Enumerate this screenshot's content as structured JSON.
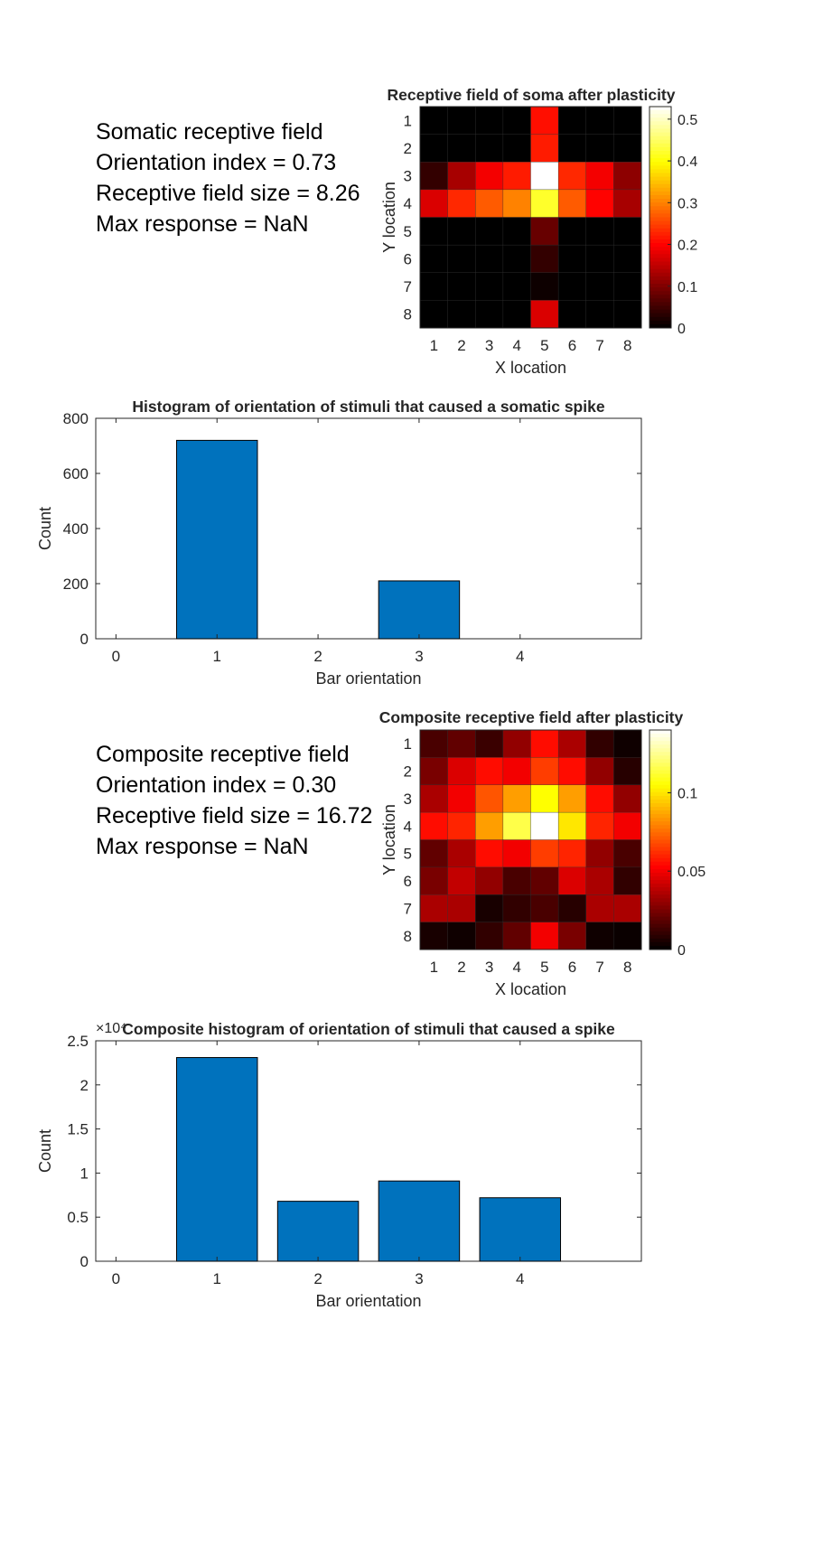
{
  "panels": {
    "soma_info": {
      "title": "Somatic receptive field",
      "orientation_index": "Orientation index = 0.73",
      "rf_size": "Receptive field size = 8.26",
      "max_response": "Max response = NaN"
    },
    "composite_info": {
      "title": "Composite receptive field",
      "orientation_index": "Orientation index = 0.30",
      "rf_size": "Receptive field size = 16.72",
      "max_response": "Max response = NaN"
    }
  },
  "chart_data": [
    {
      "type": "heatmap",
      "title": "Receptive field of soma after plasticity",
      "xlabel": "X location",
      "ylabel": "Y location",
      "x_ticks": [
        "1",
        "2",
        "3",
        "4",
        "5",
        "6",
        "7",
        "8"
      ],
      "y_ticks": [
        "1",
        "2",
        "3",
        "4",
        "5",
        "6",
        "7",
        "8"
      ],
      "colormap": "hot",
      "clim": [
        0,
        0.53
      ],
      "colorbar_ticks": [
        0,
        0.1,
        0.2,
        0.3,
        0.4,
        0.5
      ],
      "colorbar_tick_labels": [
        "0",
        "0.1",
        "0.2",
        "0.3",
        "0.4",
        "0.5"
      ],
      "values": [
        [
          0,
          0,
          0,
          0,
          0.21,
          0,
          0,
          0
        ],
        [
          0,
          0,
          0,
          0,
          0.22,
          0,
          0,
          0
        ],
        [
          0.04,
          0.13,
          0.19,
          0.22,
          0.53,
          0.23,
          0.19,
          0.11
        ],
        [
          0.17,
          0.23,
          0.27,
          0.3,
          0.42,
          0.27,
          0.2,
          0.13
        ],
        [
          0,
          0,
          0,
          0,
          0.08,
          0,
          0,
          0
        ],
        [
          0,
          0,
          0,
          0,
          0.04,
          0,
          0,
          0
        ],
        [
          0,
          0,
          0,
          0,
          0.01,
          0,
          0,
          0
        ],
        [
          0,
          0,
          0,
          0,
          0.17,
          0,
          0,
          0
        ]
      ]
    },
    {
      "type": "bar",
      "title": "Histogram of orientation of stimuli that caused a somatic spike",
      "xlabel": "Bar orientation",
      "ylabel": "Count",
      "categories": [
        "0",
        "1",
        "2",
        "3",
        "4"
      ],
      "values": [
        0,
        720,
        0,
        210,
        0
      ],
      "xlim": [
        -0.2,
        5.2
      ],
      "ylim": [
        0,
        800
      ],
      "y_ticks": [
        0,
        200,
        400,
        600,
        800
      ],
      "y_tick_labels": [
        "0",
        "200",
        "400",
        "600",
        "800"
      ],
      "bar_color": "#0072BD"
    },
    {
      "type": "heatmap",
      "title": "Composite receptive field after plasticity",
      "xlabel": "X location",
      "ylabel": "Y location",
      "x_ticks": [
        "1",
        "2",
        "3",
        "4",
        "5",
        "6",
        "7",
        "8"
      ],
      "y_ticks": [
        "1",
        "2",
        "3",
        "4",
        "5",
        "6",
        "7",
        "8"
      ],
      "colormap": "hot",
      "clim": [
        0,
        0.14
      ],
      "colorbar_ticks": [
        0,
        0.05,
        0.1
      ],
      "colorbar_tick_labels": [
        "0",
        "0.05",
        "0.1"
      ],
      "values": [
        [
          0.015,
          0.02,
          0.012,
          0.03,
          0.055,
          0.035,
          0.01,
          0.003
        ],
        [
          0.025,
          0.045,
          0.055,
          0.05,
          0.065,
          0.055,
          0.03,
          0.008
        ],
        [
          0.035,
          0.05,
          0.07,
          0.085,
          0.105,
          0.085,
          0.055,
          0.03
        ],
        [
          0.055,
          0.06,
          0.085,
          0.115,
          0.14,
          0.1,
          0.06,
          0.05
        ],
        [
          0.02,
          0.035,
          0.055,
          0.05,
          0.065,
          0.06,
          0.03,
          0.015
        ],
        [
          0.025,
          0.04,
          0.03,
          0.015,
          0.02,
          0.045,
          0.035,
          0.01
        ],
        [
          0.035,
          0.035,
          0.005,
          0.01,
          0.015,
          0.008,
          0.035,
          0.035
        ],
        [
          0.005,
          0.003,
          0.01,
          0.02,
          0.05,
          0.025,
          0.003,
          0.002
        ]
      ]
    },
    {
      "type": "bar",
      "title": "Composite histogram of orientation of stimuli that caused a spike",
      "xlabel": "Bar orientation",
      "ylabel": "Count",
      "y_exponent_label": "×10⁴",
      "categories": [
        "0",
        "1",
        "2",
        "3",
        "4"
      ],
      "values": [
        0,
        23100,
        6800,
        9100,
        7200
      ],
      "xlim": [
        -0.2,
        5.2
      ],
      "ylim": [
        0,
        25000
      ],
      "y_ticks": [
        0,
        5000,
        10000,
        15000,
        20000,
        25000
      ],
      "y_tick_labels": [
        "0",
        "0.5",
        "1",
        "1.5",
        "2",
        "2.5"
      ],
      "bar_color": "#0072BD"
    }
  ]
}
